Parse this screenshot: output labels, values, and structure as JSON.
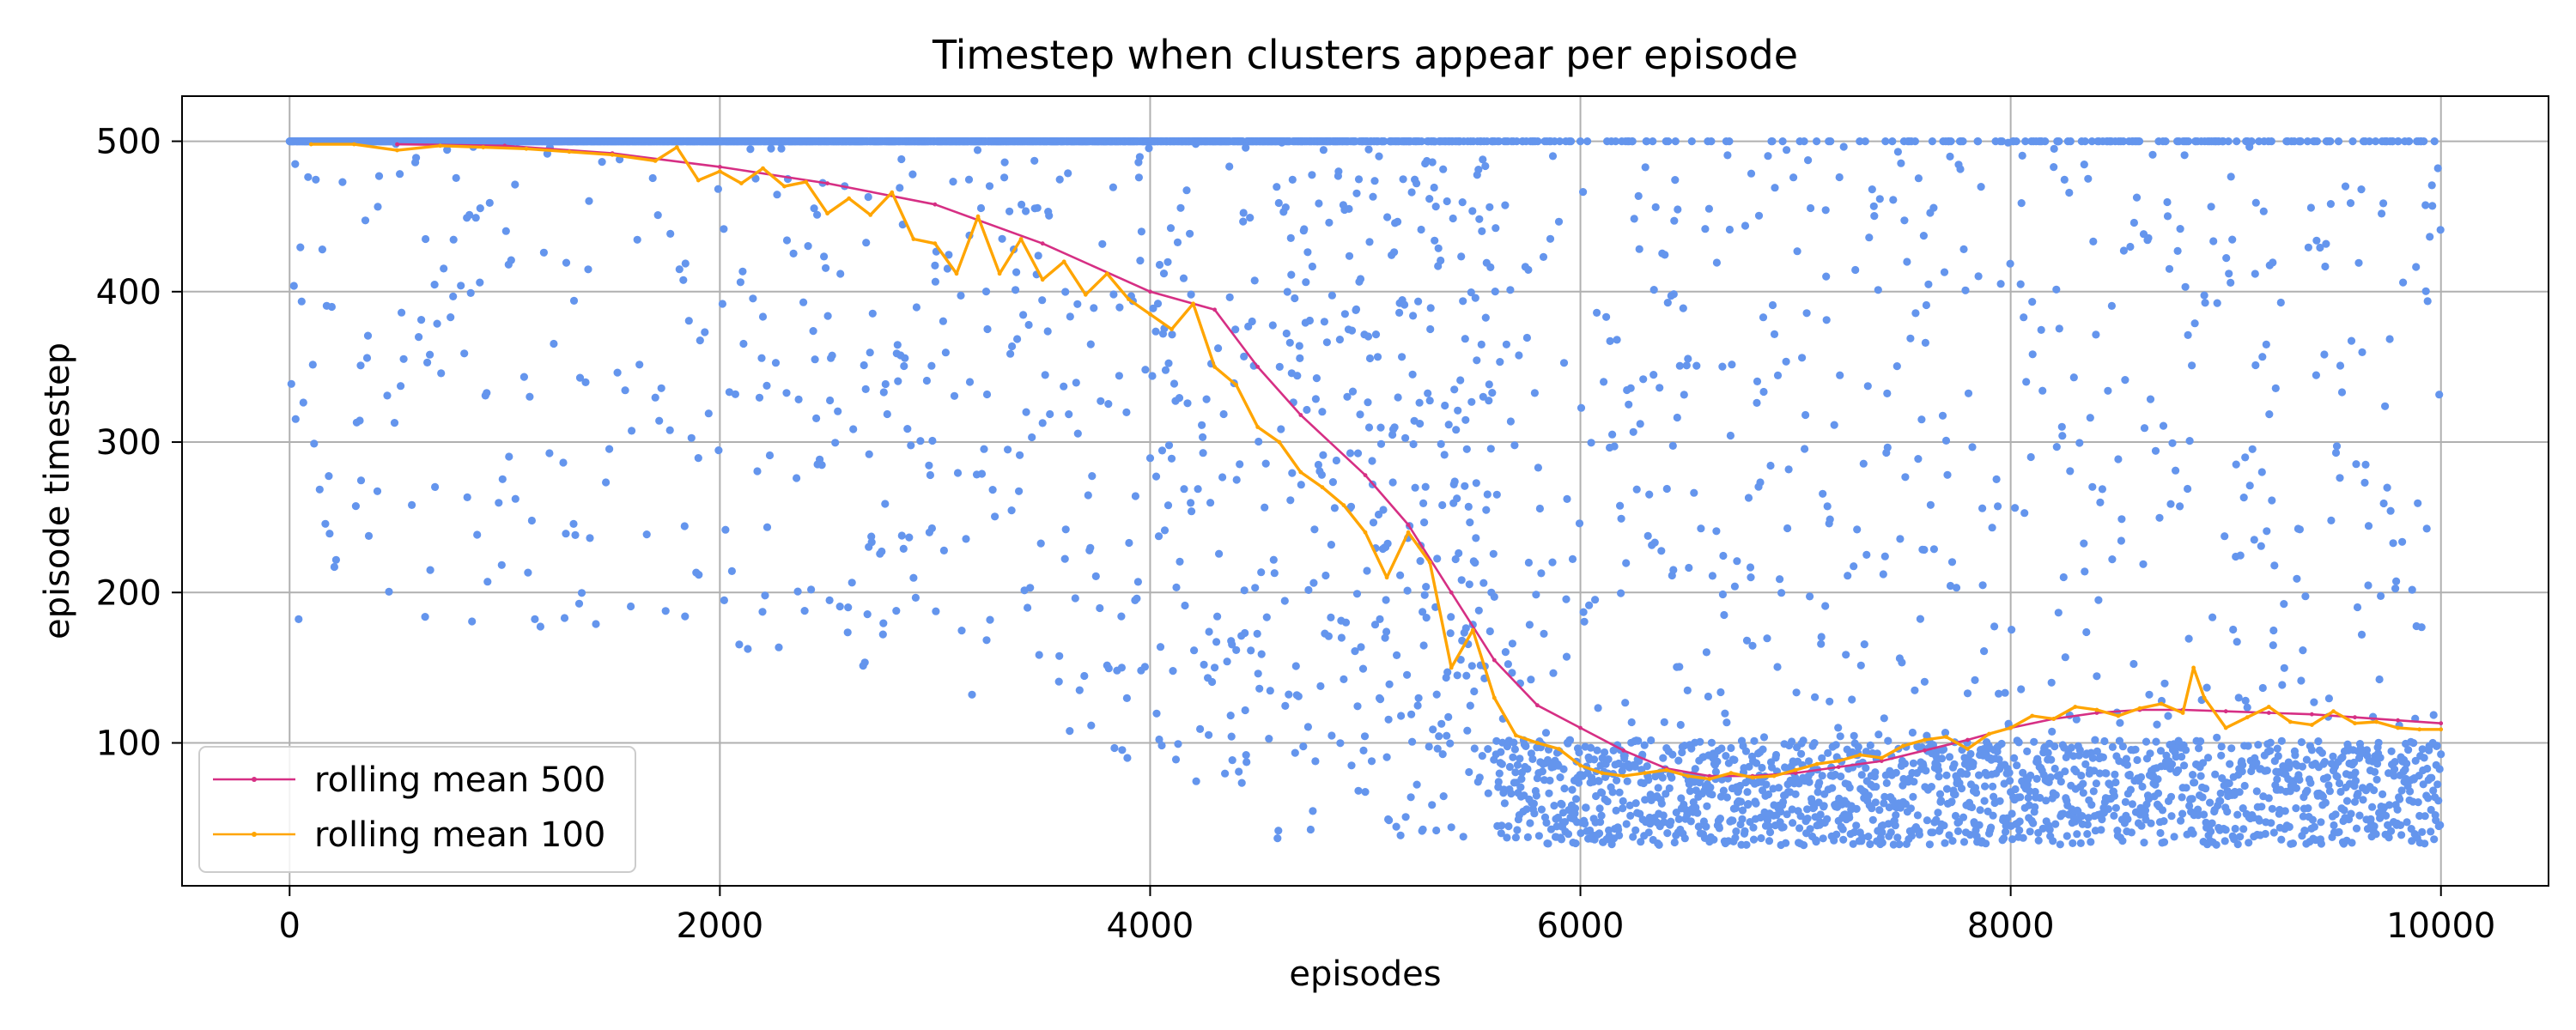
{
  "chart_data": {
    "type": "scatter",
    "title": "Timestep when clusters appear per episode",
    "xlabel": "episodes",
    "ylabel": "episode timestep",
    "xlim": [
      -500,
      10500
    ],
    "ylim": [
      5,
      530
    ],
    "xticks": [
      0,
      2000,
      4000,
      6000,
      8000,
      10000
    ],
    "yticks": [
      100,
      200,
      300,
      400,
      500
    ],
    "grid": true,
    "legend_position": "bottom-left",
    "colors": {
      "scatter": "#6495ED",
      "rolling_500": "#D62F84",
      "rolling_100": "#FFA500",
      "grid": "#B0B0B0"
    },
    "series": [
      {
        "name": "rolling mean 500",
        "kind": "line",
        "x": [
          500,
          1000,
          1500,
          2000,
          2500,
          3000,
          3500,
          4000,
          4300,
          4500,
          4700,
          5000,
          5200,
          5400,
          5600,
          5800,
          6000,
          6200,
          6400,
          6600,
          6800,
          7000,
          7200,
          7400,
          7600,
          7800,
          8000,
          8200,
          8400,
          8600,
          8800,
          9000,
          9200,
          9400,
          9600,
          9800,
          10000
        ],
        "y": [
          498,
          497,
          492,
          483,
          472,
          458,
          432,
          400,
          388,
          350,
          318,
          278,
          245,
          200,
          155,
          125,
          110,
          95,
          83,
          78,
          78,
          80,
          84,
          88,
          95,
          102,
          110,
          116,
          120,
          122,
          122,
          121,
          120,
          119,
          117,
          115,
          113
        ]
      },
      {
        "name": "rolling mean 100",
        "kind": "line",
        "x": [
          100,
          300,
          500,
          700,
          900,
          1100,
          1300,
          1500,
          1700,
          1800,
          1900,
          2000,
          2100,
          2200,
          2300,
          2400,
          2500,
          2600,
          2700,
          2800,
          2900,
          3000,
          3100,
          3200,
          3300,
          3400,
          3500,
          3600,
          3700,
          3800,
          3900,
          4000,
          4100,
          4200,
          4300,
          4400,
          4500,
          4600,
          4700,
          4800,
          4900,
          5000,
          5100,
          5200,
          5300,
          5400,
          5500,
          5600,
          5700,
          5800,
          5900,
          6000,
          6100,
          6200,
          6300,
          6400,
          6500,
          6600,
          6700,
          6800,
          6900,
          7000,
          7100,
          7200,
          7300,
          7400,
          7500,
          7600,
          7700,
          7800,
          7900,
          8000,
          8100,
          8200,
          8300,
          8400,
          8500,
          8600,
          8700,
          8800,
          8850,
          8900,
          9000,
          9100,
          9200,
          9300,
          9400,
          9500,
          9600,
          9700,
          9800,
          9900,
          10000
        ],
        "y": [
          498,
          498,
          494,
          497,
          496,
          495,
          493,
          491,
          487,
          496,
          474,
          480,
          472,
          482,
          470,
          473,
          452,
          462,
          451,
          466,
          435,
          432,
          412,
          450,
          412,
          435,
          408,
          420,
          398,
          412,
          395,
          385,
          375,
          392,
          350,
          338,
          310,
          300,
          280,
          270,
          258,
          240,
          210,
          240,
          220,
          150,
          175,
          130,
          105,
          100,
          96,
          85,
          80,
          78,
          80,
          82,
          78,
          76,
          80,
          77,
          78,
          82,
          86,
          88,
          92,
          90,
          98,
          102,
          104,
          96,
          106,
          110,
          118,
          116,
          124,
          122,
          118,
          123,
          126,
          120,
          150,
          130,
          110,
          117,
          124,
          114,
          112,
          121,
          113,
          114,
          110,
          109,
          109
        ]
      }
    ]
  }
}
